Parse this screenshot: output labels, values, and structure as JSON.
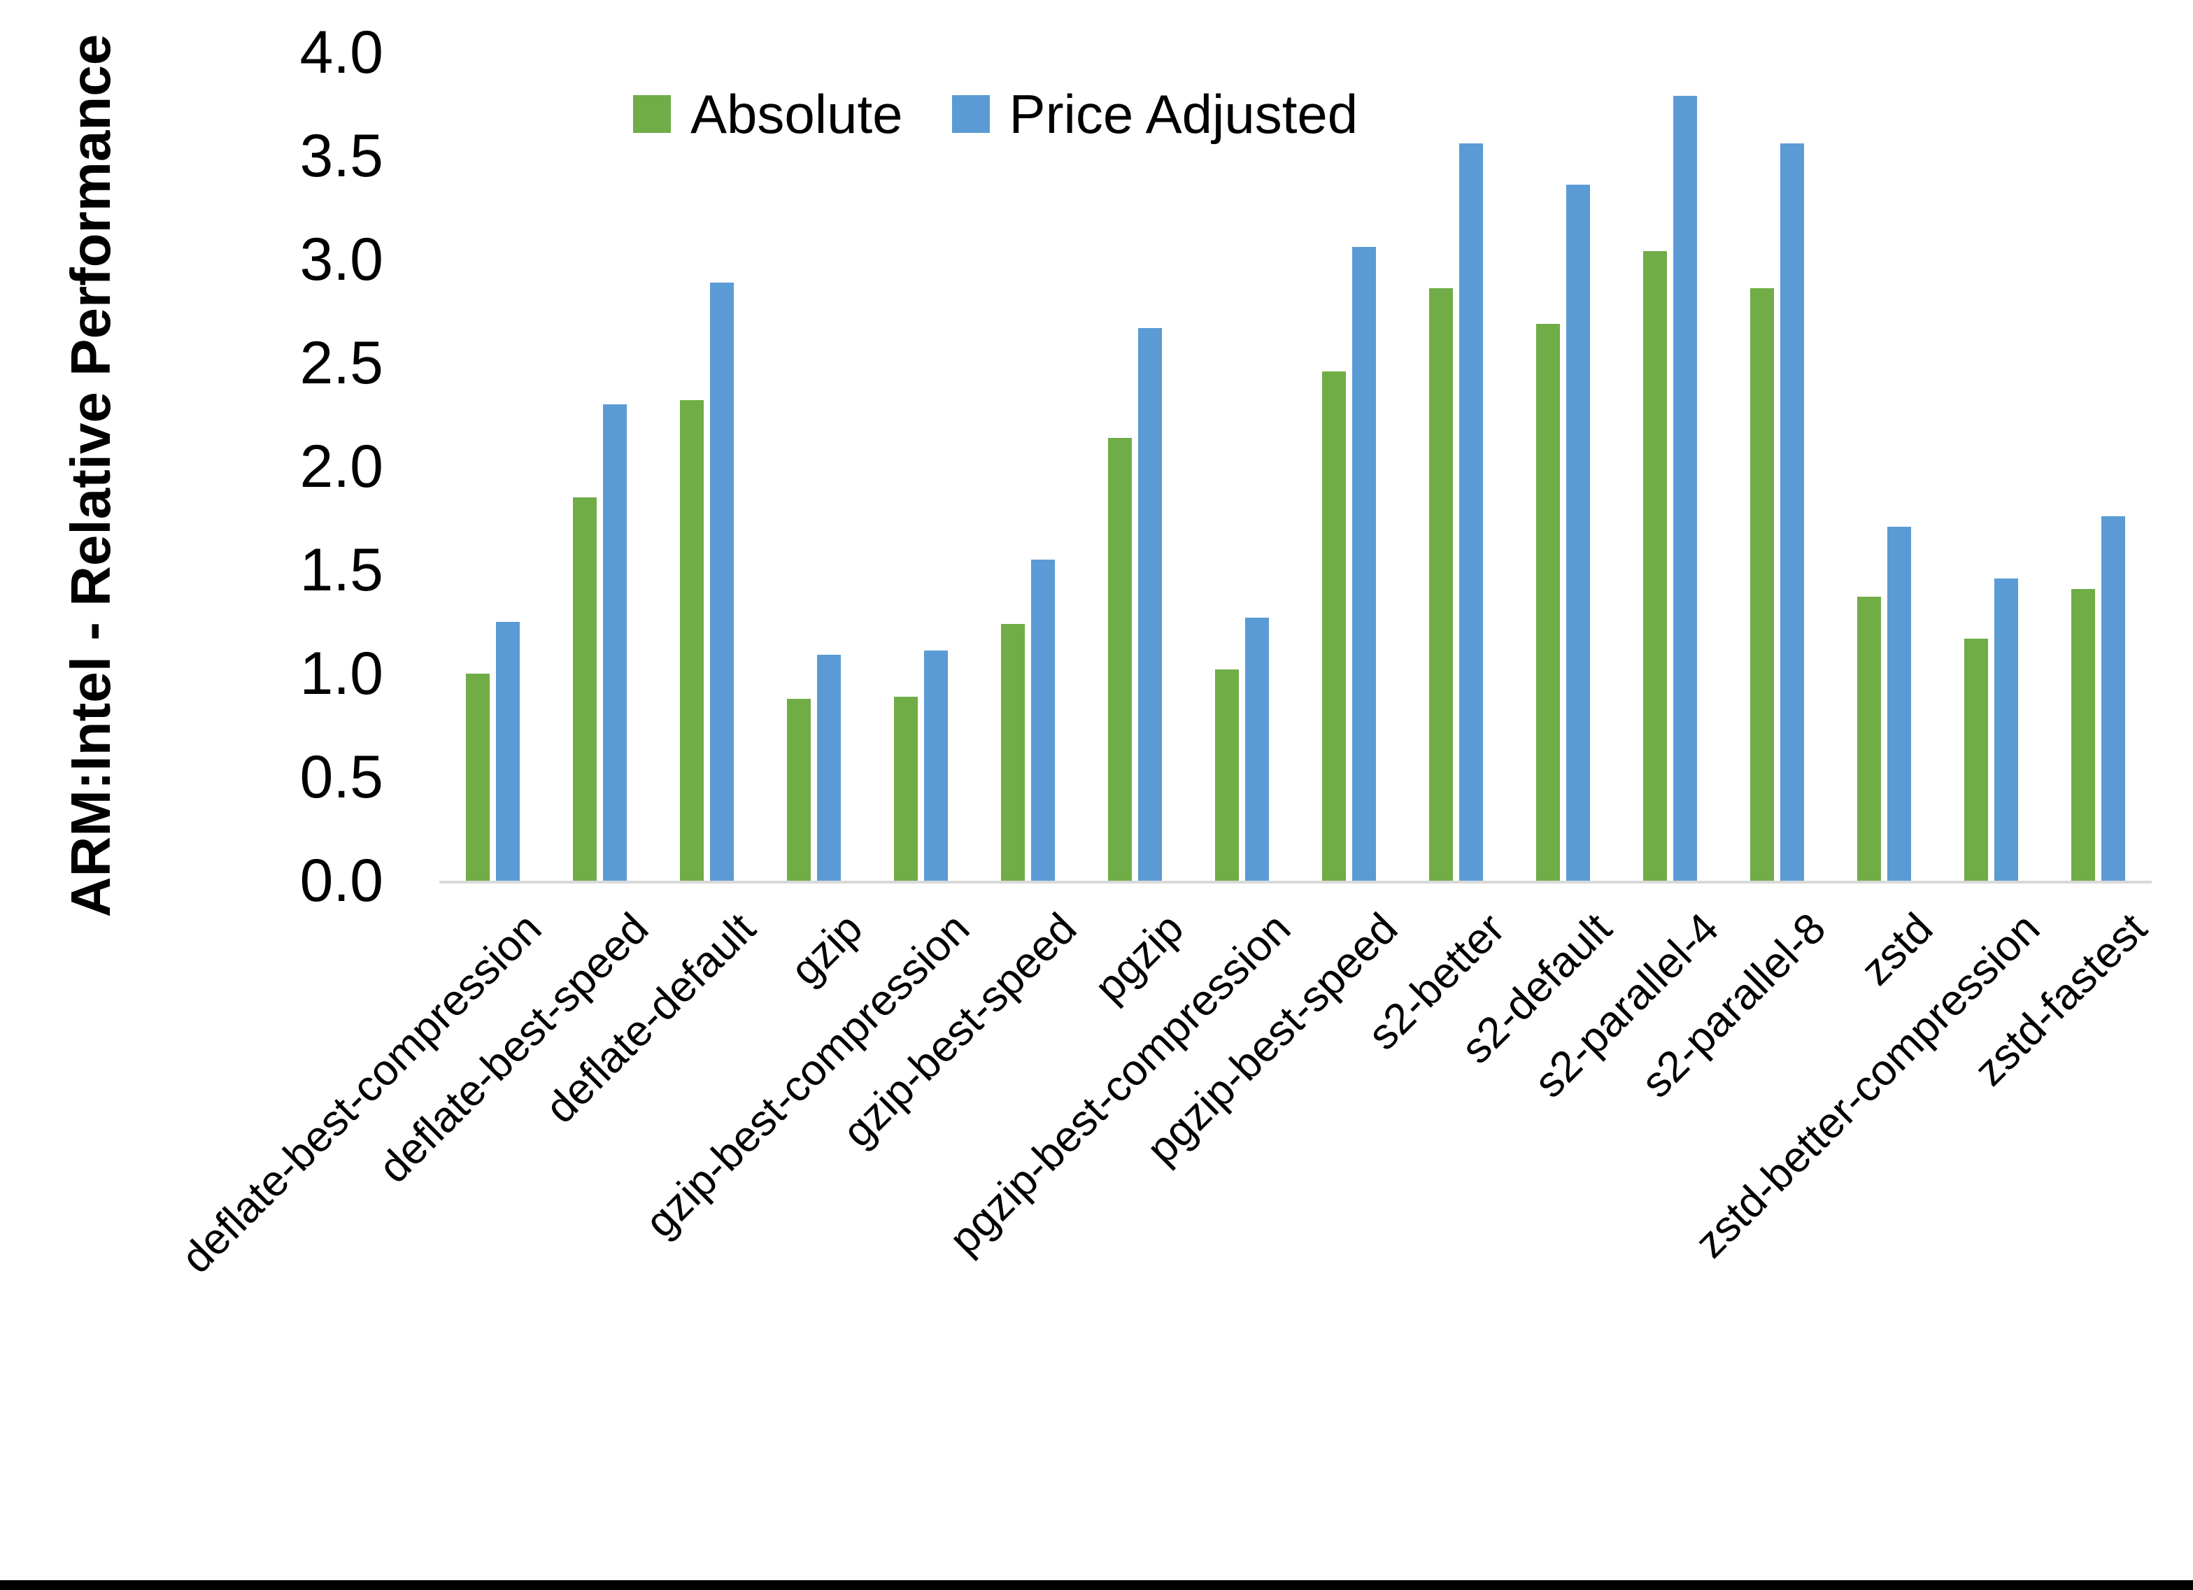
{
  "chart_data": {
    "type": "bar",
    "title": "",
    "xlabel": "",
    "ylabel": "ARM:Intel - Relative Performance",
    "ylim": [
      0.0,
      4.0
    ],
    "ytick_step": 0.5,
    "ytick_labels": [
      "4.0",
      "3.5",
      "3.0",
      "2.5",
      "2.0",
      "1.5",
      "1.0",
      "0.5",
      "0.0"
    ],
    "grid": false,
    "legend_position": "top-center",
    "axis_line_color": "#d9d9d9",
    "categories": [
      "deflate-best-compression",
      "deflate-best-speed",
      "deflate-default",
      "gzip",
      "gzip-best-compression",
      "gzip-best-speed",
      "pgzip",
      "pgzip-best-compression",
      "pgzip-best-speed",
      "s2-better",
      "s2-default",
      "s2-parallel-4",
      "s2-parallel-8",
      "zstd",
      "zstd-better-compression",
      "zstd-fastest"
    ],
    "series": [
      {
        "name": "Absolute",
        "color": "#70AD47",
        "values": [
          1.0,
          1.85,
          2.32,
          0.88,
          0.89,
          1.24,
          2.14,
          1.02,
          2.46,
          2.86,
          2.69,
          3.04,
          2.86,
          1.37,
          1.17,
          1.41
        ]
      },
      {
        "name": "Price Adjusted",
        "color": "#5B9BD5",
        "values": [
          1.25,
          2.3,
          2.89,
          1.09,
          1.11,
          1.55,
          2.67,
          1.27,
          3.06,
          3.56,
          3.36,
          3.79,
          3.56,
          1.71,
          1.46,
          1.76
        ]
      }
    ]
  }
}
